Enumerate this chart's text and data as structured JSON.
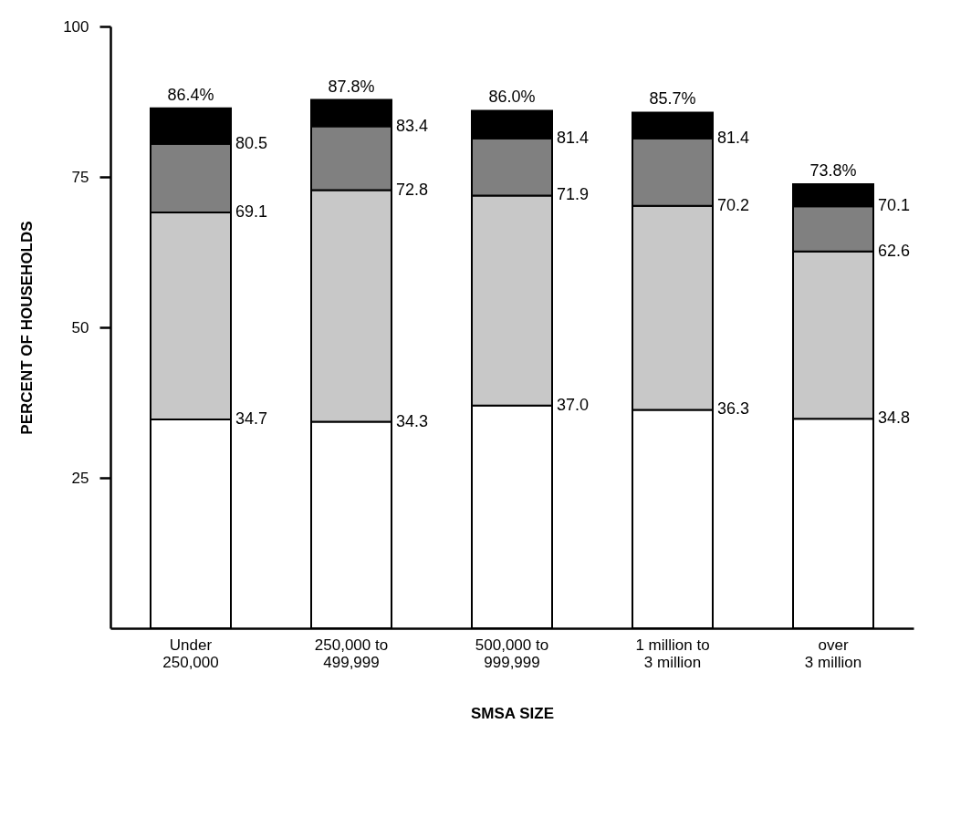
{
  "chart_data": {
    "type": "bar",
    "stacked": true,
    "xlabel": "SMSA SIZE",
    "ylabel": "PERCENT OF HOUSEHOLDS",
    "categories": [
      "Under\n250,000",
      "250,000 to\n499,999",
      "500,000 to\n999,999",
      "1 million to\n3 million",
      "over\n3 million"
    ],
    "ylim": [
      0,
      100
    ],
    "yticks": [
      25,
      50,
      75,
      100
    ],
    "grid": false,
    "series": [
      {
        "color": "#ffffff",
        "values": [
          34.7,
          34.3,
          37.0,
          36.3,
          34.8
        ]
      },
      {
        "color": "#c8c8c8",
        "values": [
          34.4,
          38.5,
          34.9,
          33.9,
          27.8
        ]
      },
      {
        "color": "#808080",
        "values": [
          11.4,
          10.6,
          9.5,
          11.2,
          7.5
        ]
      },
      {
        "color": "#000000",
        "values": [
          5.9,
          4.4,
          4.6,
          4.3,
          3.7
        ]
      }
    ],
    "annotations": [
      {
        "text": "34.7",
        "x": "Under\n250,000",
        "y": 34.7
      },
      {
        "text": "69.1",
        "x": "Under\n250,000",
        "y": 69.1
      },
      {
        "text": "80.5",
        "x": "Under\n250,000",
        "y": 80.5
      },
      {
        "text": "86.4%",
        "x": "Under\n250,000",
        "y": 86.4
      },
      {
        "text": "34.3",
        "x": "250,000 to\n499,999",
        "y": 34.3
      },
      {
        "text": "72.8",
        "x": "250,000 to\n499,999",
        "y": 72.8
      },
      {
        "text": "83.4",
        "x": "250,000 to\n499,999",
        "y": 83.4
      },
      {
        "text": "87.8%",
        "x": "250,000 to\n499,999",
        "y": 87.8
      },
      {
        "text": "37.0",
        "x": "500,000 to\n999,999",
        "y": 37.0
      },
      {
        "text": "71.9",
        "x": "500,000 to\n999,999",
        "y": 71.9
      },
      {
        "text": "81.4",
        "x": "500,000 to\n999,999",
        "y": 81.4
      },
      {
        "text": "86.0%",
        "x": "500,000 to\n999,999",
        "y": 86.0
      },
      {
        "text": "36.3",
        "x": "1 million to\n3 million",
        "y": 36.3
      },
      {
        "text": "70.2",
        "x": "1 million to\n3 million",
        "y": 70.2
      },
      {
        "text": "81.4",
        "x": "1 million to\n3 million",
        "y": 81.4
      },
      {
        "text": "85.7%",
        "x": "1 million to\n3 million",
        "y": 85.7
      },
      {
        "text": "34.8",
        "x": "over\n3 million",
        "y": 34.8
      },
      {
        "text": "62.6",
        "x": "over\n3 million",
        "y": 62.6
      },
      {
        "text": "70.1",
        "x": "over\n3 million",
        "y": 70.1
      },
      {
        "text": "73.8%",
        "x": "over\n3 million",
        "y": 73.8
      }
    ]
  }
}
